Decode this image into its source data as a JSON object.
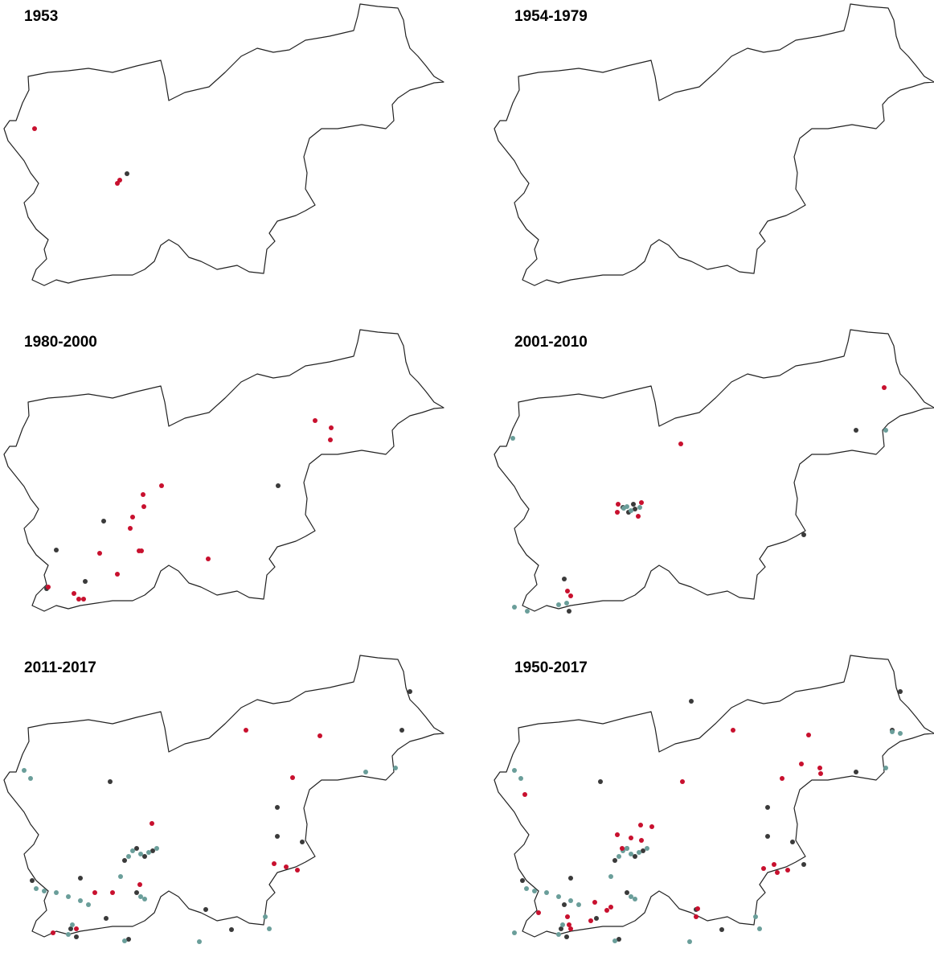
{
  "panels": [
    {
      "title": "1953"
    },
    {
      "title": "1954-1979"
    },
    {
      "title": "1980-2000"
    },
    {
      "title": "2001-2010"
    },
    {
      "title": "2011-2017"
    },
    {
      "title": "1950-2017"
    }
  ]
}
